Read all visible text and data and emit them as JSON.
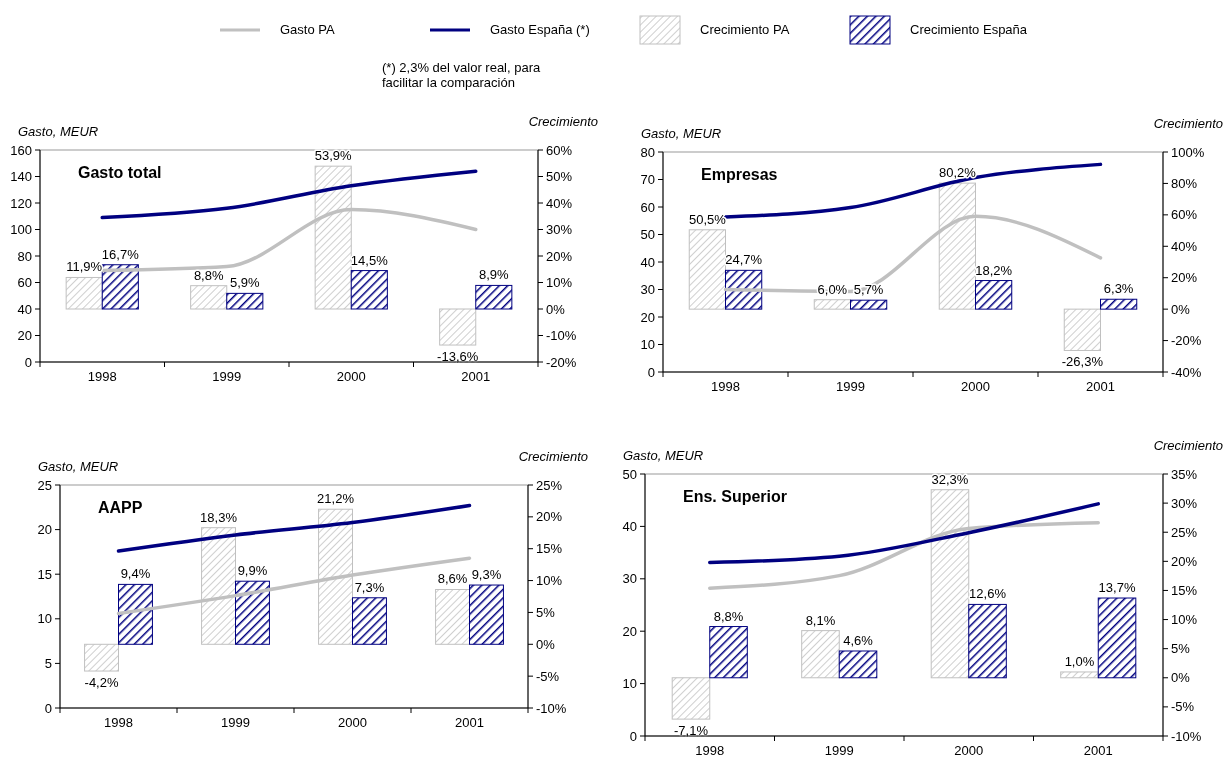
{
  "chart_data": [
    {
      "type": "bar",
      "title": "Gasto total",
      "categories": [
        "1998",
        "1999",
        "2000",
        "2001"
      ],
      "ylabel": "Gasto, MEUR",
      "y2label": "Crecimiento",
      "legend": "top",
      "annotations": [
        "(*) 2,3% del valor real, para facilitar la comparación"
      ],
      "ylim": [
        0,
        160
      ],
      "yticks": [
        0,
        20,
        40,
        60,
        80,
        100,
        120,
        140,
        160
      ],
      "y2lim": [
        -20,
        60
      ],
      "y2ticks": [
        {
          "value": -20,
          "label": "-20%"
        },
        {
          "value": -10,
          "label": "-10%"
        },
        {
          "value": 0,
          "label": "0%"
        },
        {
          "value": 10,
          "label": "10%"
        },
        {
          "value": 20,
          "label": "20%"
        },
        {
          "value": 30,
          "label": "30%"
        },
        {
          "value": 40,
          "label": "40%"
        },
        {
          "value": 50,
          "label": "50%"
        },
        {
          "value": 60,
          "label": "60%"
        }
      ],
      "series": [
        {
          "name": "Gasto PA",
          "type": "line",
          "color": "#c0c0c0",
          "values": [
            69,
            72,
            115,
            100
          ]
        },
        {
          "name": "Gasto España (*)",
          "type": "line",
          "color": "#000080",
          "values": [
            109,
            116,
            133,
            144
          ]
        },
        {
          "name": "Crecimiento PA",
          "axis": "y2",
          "color": "#c0c0c0",
          "values": [
            11.9,
            8.8,
            53.9,
            -13.6
          ],
          "value_labels": [
            "11,9%",
            "8,8%",
            "53,9%",
            "-13,6%"
          ]
        },
        {
          "name": "Crecimiento España",
          "axis": "y2",
          "color": "#000080",
          "values": [
            16.7,
            5.9,
            14.5,
            8.9
          ],
          "value_labels": [
            "16,7%",
            "5,9%",
            "14,5%",
            "8,9%"
          ]
        }
      ]
    },
    {
      "type": "bar",
      "title": "Empresas",
      "categories": [
        "1998",
        "1999",
        "2000",
        "2001"
      ],
      "ylabel": "Gasto, MEUR",
      "y2label": "Crecimiento",
      "ylim": [
        0,
        80
      ],
      "yticks": [
        0,
        10,
        20,
        30,
        40,
        50,
        60,
        70,
        80
      ],
      "y2lim": [
        -40,
        100
      ],
      "y2ticks": [
        {
          "value": -40,
          "label": "-40%"
        },
        {
          "value": -20,
          "label": "-20%"
        },
        {
          "value": 0,
          "label": "0%"
        },
        {
          "value": 20,
          "label": "20%"
        },
        {
          "value": 40,
          "label": "40%"
        },
        {
          "value": 60,
          "label": "60%"
        },
        {
          "value": 80,
          "label": "80%"
        },
        {
          "value": 100,
          "label": "100%"
        }
      ],
      "series": [
        {
          "name": "Gasto PA",
          "type": "line",
          "color": "#c0c0c0",
          "values": [
            30,
            29.3,
            56.6,
            41.5
          ]
        },
        {
          "name": "Gasto España (*)",
          "type": "line",
          "color": "#000080",
          "values": [
            56.4,
            59.8,
            70.7,
            75.5
          ]
        },
        {
          "name": "Crecimiento PA",
          "axis": "y2",
          "color": "#c0c0c0",
          "values": [
            50.5,
            6.0,
            80.2,
            -26.3
          ],
          "value_labels": [
            "50,5%",
            "6,0%",
            "80,2%",
            "-26,3%"
          ]
        },
        {
          "name": "Crecimiento España",
          "axis": "y2",
          "color": "#000080",
          "values": [
            24.7,
            5.7,
            18.2,
            6.3
          ],
          "value_labels": [
            "24,7%",
            "5,7%",
            "18,2%",
            "6,3%"
          ]
        }
      ]
    },
    {
      "type": "bar",
      "title": "AAPP",
      "categories": [
        "1998",
        "1999",
        "2000",
        "2001"
      ],
      "ylabel": "Gasto, MEUR",
      "y2label": "Crecimiento",
      "ylim": [
        0,
        25
      ],
      "yticks": [
        0,
        5,
        10,
        15,
        20,
        25
      ],
      "y2lim": [
        -10,
        25
      ],
      "y2ticks": [
        {
          "value": -10,
          "label": "-10%"
        },
        {
          "value": -5,
          "label": "-5%"
        },
        {
          "value": 0,
          "label": "0%"
        },
        {
          "value": 5,
          "label": "5%"
        },
        {
          "value": 10,
          "label": "10%"
        },
        {
          "value": 15,
          "label": "15%"
        },
        {
          "value": 20,
          "label": "20%"
        },
        {
          "value": 25,
          "label": "25%"
        }
      ],
      "series": [
        {
          "name": "Gasto PA",
          "type": "line",
          "color": "#c0c0c0",
          "values": [
            10.6,
            12.6,
            14.9,
            16.8
          ]
        },
        {
          "name": "Gasto España (*)",
          "type": "line",
          "color": "#000080",
          "values": [
            17.6,
            19.4,
            20.8,
            22.7
          ]
        },
        {
          "name": "Crecimiento PA",
          "axis": "y2",
          "color": "#c0c0c0",
          "values": [
            -4.2,
            18.3,
            21.2,
            8.6
          ],
          "value_labels": [
            "-4,2%",
            "18,3%",
            "21,2%",
            "8,6%"
          ]
        },
        {
          "name": "Crecimiento España",
          "axis": "y2",
          "color": "#000080",
          "values": [
            9.4,
            9.9,
            7.3,
            9.3
          ],
          "value_labels": [
            "9,4%",
            "9,9%",
            "7,3%",
            "9,3%"
          ]
        }
      ]
    },
    {
      "type": "bar",
      "title": "Ens. Superior",
      "categories": [
        "1998",
        "1999",
        "2000",
        "2001"
      ],
      "ylabel": "Gasto, MEUR",
      "y2label": "Crecimiento",
      "ylim": [
        0,
        50
      ],
      "yticks": [
        0,
        10,
        20,
        30,
        40,
        50
      ],
      "y2lim": [
        -10,
        35
      ],
      "y2ticks": [
        {
          "value": -10,
          "label": "-10%"
        },
        {
          "value": -5,
          "label": "-5%"
        },
        {
          "value": 0,
          "label": "0%"
        },
        {
          "value": 5,
          "label": "5%"
        },
        {
          "value": 10,
          "label": "10%"
        },
        {
          "value": 15,
          "label": "15%"
        },
        {
          "value": 20,
          "label": "20%"
        },
        {
          "value": 25,
          "label": "25%"
        },
        {
          "value": 30,
          "label": "30%"
        },
        {
          "value": 35,
          "label": "35%"
        }
      ],
      "series": [
        {
          "name": "Gasto PA",
          "type": "line",
          "color": "#c0c0c0",
          "values": [
            28.2,
            30.6,
            39.6,
            40.7
          ]
        },
        {
          "name": "Gasto España (*)",
          "type": "line",
          "color": "#000080",
          "values": [
            33.1,
            34.3,
            38.8,
            44.3
          ]
        },
        {
          "name": "Crecimiento PA",
          "axis": "y2",
          "color": "#c0c0c0",
          "values": [
            -7.1,
            8.1,
            32.3,
            1.0
          ],
          "value_labels": [
            "-7,1%",
            "8,1%",
            "32,3%",
            "1,0%"
          ]
        },
        {
          "name": "Crecimiento España",
          "axis": "y2",
          "color": "#000080",
          "values": [
            8.8,
            4.6,
            12.6,
            13.7
          ],
          "value_labels": [
            "8,8%",
            "4,6%",
            "12,6%",
            "13,7%"
          ]
        }
      ]
    }
  ]
}
